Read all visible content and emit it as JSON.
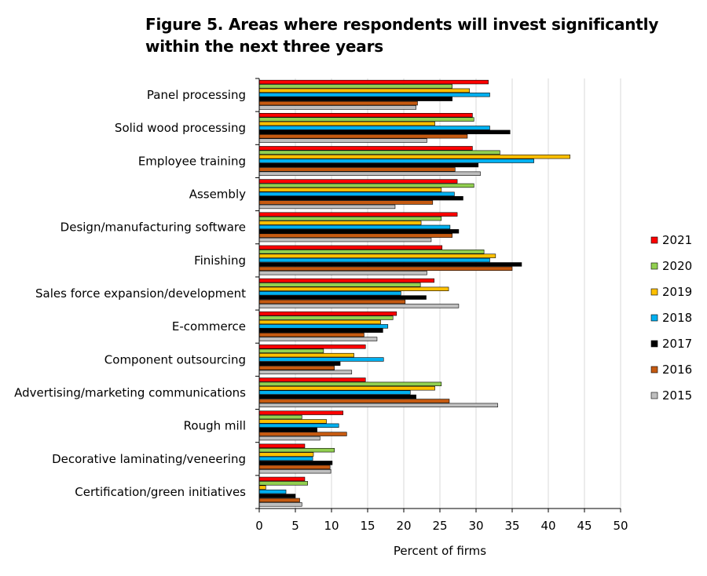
{
  "title_lines": [
    "Figure 5. Areas where respondents will invest significantly",
    "within the next three years"
  ],
  "chart_data": {
    "type": "bar",
    "orientation": "horizontal",
    "title": "Figure 5. Areas where respondents will invest significantly within the next three years",
    "xlabel": "Percent of firms",
    "ylabel": "",
    "xlim": [
      0,
      50
    ],
    "x_ticks": [
      0,
      5,
      10,
      15,
      20,
      25,
      30,
      35,
      40,
      45,
      50
    ],
    "grid": "vertical",
    "legend_position": "right",
    "categories": [
      "Panel processing",
      "Solid wood processing",
      "Employee training",
      "Assembly",
      "Design/manufacturing software",
      "Finishing",
      "Sales force expansion/development",
      "E-commerce",
      "Component outsourcing",
      "Advertising/marketing communications",
      "Rough mill",
      "Decorative laminating/veneering",
      "Certification/green initiatives"
    ],
    "series": [
      {
        "name": "2021",
        "color": "#ff0000",
        "values": [
          31.7,
          29.5,
          29.5,
          27.4,
          27.4,
          25.3,
          24.2,
          19.0,
          14.7,
          14.7,
          11.6,
          6.3,
          6.3
        ]
      },
      {
        "name": "2020",
        "color": "#92d050",
        "values": [
          26.7,
          29.7,
          33.3,
          29.7,
          25.2,
          31.1,
          22.3,
          18.5,
          8.9,
          25.2,
          5.9,
          10.4,
          6.7
        ]
      },
      {
        "name": "2019",
        "color": "#ffc000",
        "values": [
          29.1,
          24.3,
          43.0,
          25.2,
          22.4,
          32.7,
          26.2,
          16.8,
          13.1,
          24.3,
          9.3,
          7.5,
          0.9
        ]
      },
      {
        "name": "2018",
        "color": "#00b0f0",
        "values": [
          31.9,
          31.9,
          38.0,
          27.0,
          26.4,
          31.9,
          19.6,
          17.8,
          17.2,
          20.9,
          11.0,
          7.4,
          3.7
        ]
      },
      {
        "name": "2017",
        "color": "#000000",
        "values": [
          26.7,
          34.7,
          30.3,
          28.2,
          27.6,
          36.3,
          23.1,
          17.1,
          11.2,
          21.7,
          8.0,
          10.1,
          5.0
        ]
      },
      {
        "name": "2016",
        "color": "#c55a11",
        "values": [
          21.9,
          28.8,
          27.1,
          24.0,
          26.7,
          35.0,
          20.2,
          14.5,
          10.4,
          26.3,
          12.1,
          9.8,
          5.6
        ]
      },
      {
        "name": "2015",
        "color": "#bfbfbf",
        "values": [
          21.7,
          23.2,
          30.6,
          18.8,
          23.8,
          23.2,
          27.6,
          16.3,
          12.8,
          33.0,
          8.4,
          9.9,
          5.9
        ]
      }
    ]
  }
}
